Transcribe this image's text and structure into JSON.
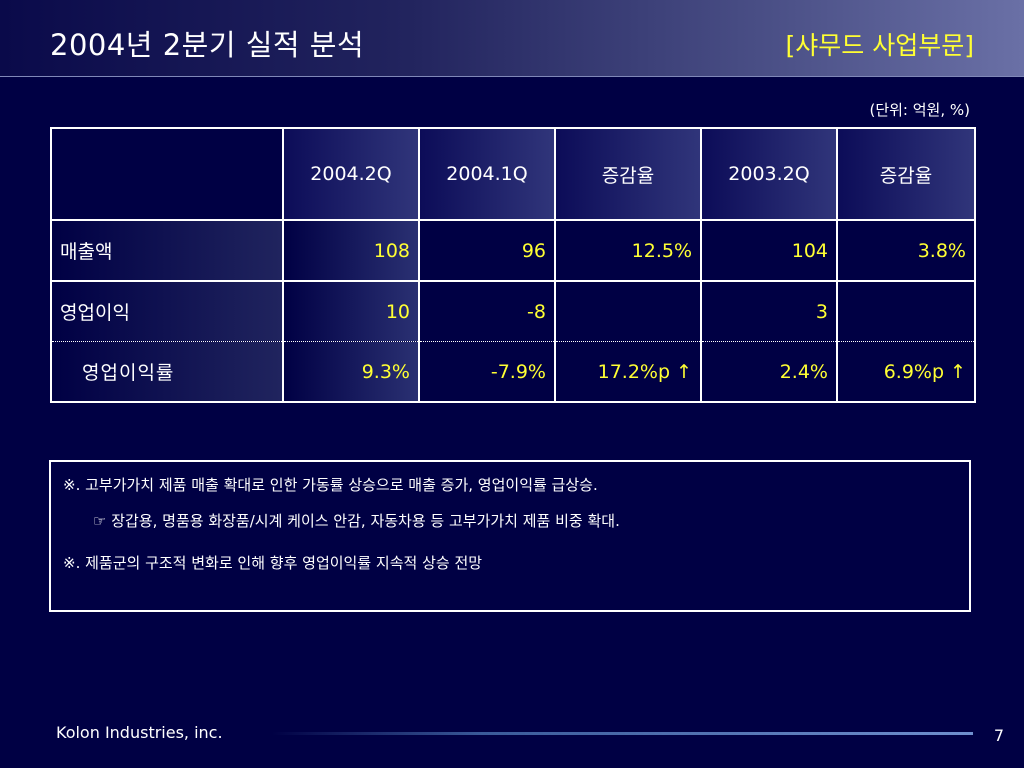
{
  "title": "2004년 2분기 실적 분석",
  "section_label": "[샤무드 사업부문]",
  "unit_note": "(단위: 억원, %)",
  "table": {
    "headers": [
      "",
      "2004.2Q",
      "2004.1Q",
      "증감율",
      "2003.2Q",
      "증감율"
    ],
    "rows": [
      {
        "label": "매출액",
        "cells": [
          "108",
          "96",
          "12.5%",
          "104",
          "3.8%"
        ]
      },
      {
        "label": "영업이익",
        "cells": [
          "10",
          "-8",
          "",
          "3",
          ""
        ]
      },
      {
        "label": "영업이익률",
        "cells": [
          "9.3%",
          "-7.9%",
          "17.2%p ↑",
          "2.4%",
          "6.9%p ↑"
        ]
      }
    ]
  },
  "notes": [
    "※. 고부가가치 제품 매출 확대로 인한 가동률 상승으로 매출 증가, 영업이익률 급상승.",
    "☞ 장갑용, 명품용 화장품/시계 케이스 안감, 자동차용 등 고부가가치 제품 비중 확대.",
    "※. 제품군의 구조적 변화로 인해 향후 영업이익률 지속적 상승 전망"
  ],
  "footer": {
    "brand": "Kolon Industries, inc.",
    "page_number": "7"
  },
  "colors": {
    "background": "#000044",
    "highlight_text": "#ffff33",
    "text": "#ffffff"
  }
}
